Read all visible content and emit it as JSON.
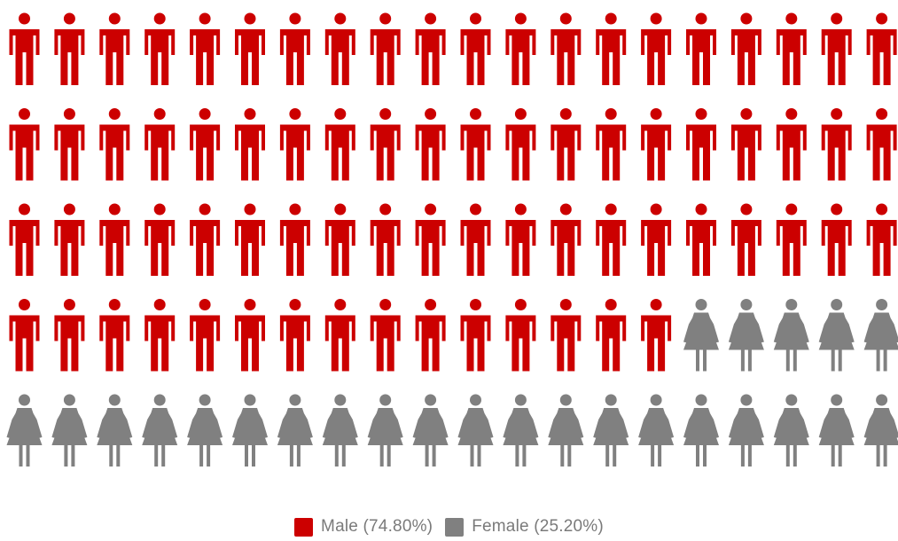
{
  "chart_data": {
    "type": "pictogram",
    "total_icons": 100,
    "grid": {
      "rows": 5,
      "columns": 20
    },
    "series": [
      {
        "name": "Male",
        "value": 74.8,
        "icon": "male-person-icon",
        "color": "#cc0000",
        "icons": 75
      },
      {
        "name": "Female",
        "value": 25.2,
        "icon": "female-person-icon",
        "color": "#808080",
        "icons": 25
      }
    ],
    "legend_position": "bottom-center",
    "legend_labels": [
      "Male (74.80%)",
      "Female (25.20%)"
    ]
  }
}
